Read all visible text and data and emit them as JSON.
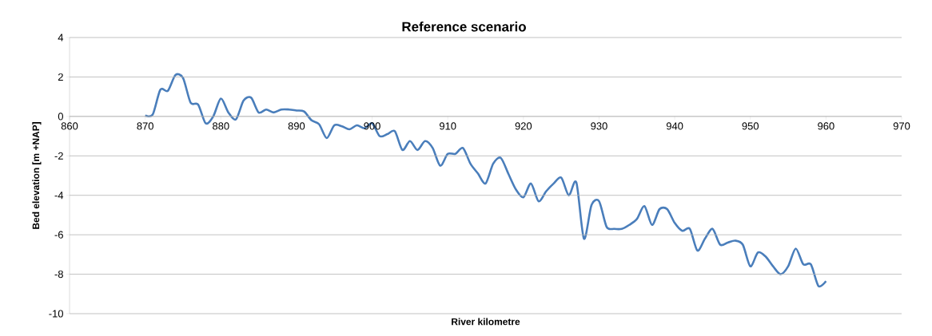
{
  "chart_data": {
    "type": "line",
    "title": "Reference scenario",
    "xlabel": "River kilometre",
    "ylabel": "Bed elevation [m +NAP]",
    "x": [
      870,
      871,
      872,
      873,
      874,
      875,
      876,
      877,
      878,
      879,
      880,
      881,
      882,
      883,
      884,
      885,
      886,
      887,
      888,
      889,
      890,
      891,
      892,
      893,
      894,
      895,
      896,
      897,
      898,
      899,
      900,
      901,
      902,
      903,
      904,
      905,
      906,
      907,
      908,
      909,
      910,
      911,
      912,
      913,
      914,
      915,
      916,
      917,
      918,
      919,
      920,
      921,
      922,
      923,
      924,
      925,
      926,
      927,
      928,
      929,
      930,
      931,
      932,
      933,
      934,
      935,
      936,
      937,
      938,
      939,
      940,
      941,
      942,
      943,
      944,
      945,
      946,
      947,
      948,
      949,
      950,
      951,
      952,
      953,
      954,
      955,
      956,
      957,
      958,
      959,
      960
    ],
    "series": [
      {
        "color": "#4a7ebb",
        "values": [
          0.05,
          0.1,
          1.35,
          1.3,
          2.1,
          1.95,
          0.7,
          0.6,
          -0.35,
          0.0,
          0.9,
          0.2,
          -0.15,
          0.8,
          0.95,
          0.2,
          0.35,
          0.2,
          0.35,
          0.35,
          0.3,
          0.25,
          -0.2,
          -0.4,
          -1.1,
          -0.45,
          -0.5,
          -0.65,
          -0.45,
          -0.6,
          -0.35,
          -1.0,
          -0.9,
          -0.75,
          -1.7,
          -1.25,
          -1.7,
          -1.25,
          -1.6,
          -2.5,
          -1.9,
          -1.9,
          -1.6,
          -2.4,
          -2.9,
          -3.4,
          -2.4,
          -2.1,
          -2.9,
          -3.7,
          -4.1,
          -3.4,
          -4.3,
          -3.8,
          -3.4,
          -3.1,
          -4.0,
          -3.35,
          -6.2,
          -4.5,
          -4.3,
          -5.6,
          -5.7,
          -5.7,
          -5.5,
          -5.2,
          -4.55,
          -5.5,
          -4.7,
          -4.7,
          -5.4,
          -5.8,
          -5.7,
          -6.8,
          -6.2,
          -5.7,
          -6.5,
          -6.4,
          -6.3,
          -6.5,
          -7.6,
          -6.9,
          -7.1,
          -7.6,
          -8.0,
          -7.6,
          -6.7,
          -7.5,
          -7.5,
          -8.6,
          -8.35
        ]
      }
    ],
    "xlim": [
      860,
      970
    ],
    "xticks": [
      860,
      870,
      880,
      890,
      900,
      910,
      920,
      930,
      940,
      950,
      960,
      970
    ],
    "ylim": [
      -10,
      4
    ],
    "yticks": [
      -10,
      -8,
      -6,
      -4,
      -2,
      0,
      2,
      4
    ],
    "grid": "y",
    "marker": "none",
    "line_style": "solid"
  }
}
